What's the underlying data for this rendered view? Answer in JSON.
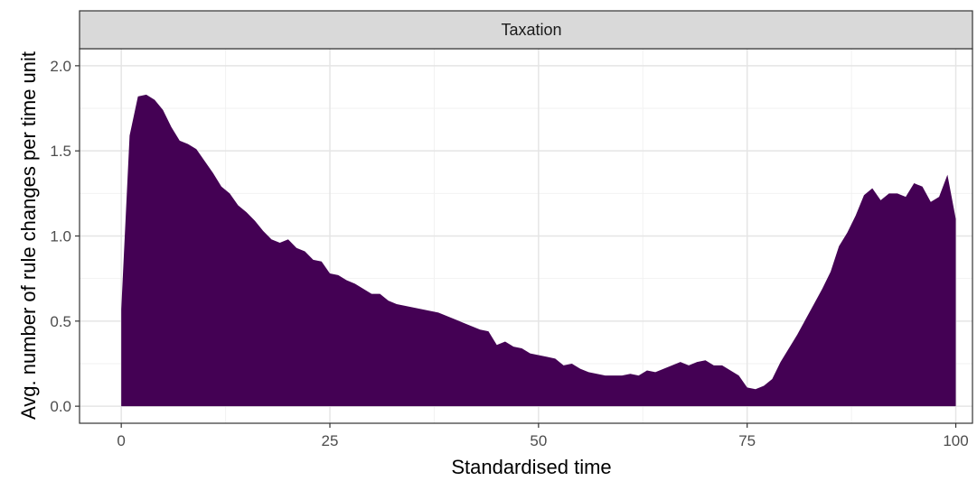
{
  "chart_data": {
    "type": "area",
    "facet_label": "Taxation",
    "xlabel": "Standardised time",
    "ylabel": "Avg. number of rule changes per time unit",
    "xlim": [
      -5,
      102
    ],
    "ylim": [
      -0.1,
      2.1
    ],
    "x_ticks": [
      0,
      25,
      50,
      75,
      100
    ],
    "x_tick_labels": [
      "0",
      "25",
      "50",
      "75",
      "100"
    ],
    "y_ticks": [
      0.0,
      0.5,
      1.0,
      1.5,
      2.0
    ],
    "y_tick_labels": [
      "0.0",
      "0.5",
      "1.0",
      "1.5",
      "2.0"
    ],
    "grid": true,
    "fill_color": "#440154",
    "x": [
      0,
      1,
      2,
      3,
      4,
      5,
      6,
      7,
      8,
      9,
      10,
      11,
      12,
      13,
      14,
      15,
      16,
      17,
      18,
      19,
      20,
      21,
      22,
      23,
      24,
      25,
      26,
      27,
      28,
      29,
      30,
      31,
      32,
      33,
      34,
      35,
      36,
      37,
      38,
      39,
      40,
      41,
      42,
      43,
      44,
      45,
      46,
      47,
      48,
      49,
      50,
      51,
      52,
      53,
      54,
      55,
      56,
      57,
      58,
      59,
      60,
      61,
      62,
      63,
      64,
      65,
      66,
      67,
      68,
      69,
      70,
      71,
      72,
      73,
      74,
      75,
      76,
      77,
      78,
      79,
      80,
      81,
      82,
      83,
      84,
      85,
      86,
      87,
      88,
      89,
      90,
      91,
      92,
      93,
      94,
      95,
      96,
      97,
      98,
      99,
      100
    ],
    "y": [
      0.57,
      1.59,
      1.82,
      1.83,
      1.8,
      1.74,
      1.64,
      1.56,
      1.54,
      1.51,
      1.44,
      1.37,
      1.29,
      1.25,
      1.18,
      1.14,
      1.09,
      1.03,
      0.98,
      0.96,
      0.98,
      0.93,
      0.91,
      0.86,
      0.85,
      0.78,
      0.77,
      0.74,
      0.72,
      0.69,
      0.66,
      0.66,
      0.62,
      0.6,
      0.59,
      0.58,
      0.57,
      0.56,
      0.55,
      0.53,
      0.51,
      0.49,
      0.47,
      0.45,
      0.44,
      0.36,
      0.38,
      0.35,
      0.34,
      0.31,
      0.3,
      0.29,
      0.28,
      0.24,
      0.25,
      0.22,
      0.2,
      0.19,
      0.18,
      0.18,
      0.18,
      0.19,
      0.18,
      0.21,
      0.2,
      0.22,
      0.24,
      0.26,
      0.24,
      0.26,
      0.27,
      0.24,
      0.24,
      0.21,
      0.18,
      0.11,
      0.1,
      0.12,
      0.16,
      0.26,
      0.34,
      0.42,
      0.51,
      0.6,
      0.69,
      0.79,
      0.94,
      1.02,
      1.12,
      1.24,
      1.28,
      1.21,
      1.25,
      1.25,
      1.23,
      1.31,
      1.29,
      1.2,
      1.23,
      1.36,
      1.1
    ]
  }
}
